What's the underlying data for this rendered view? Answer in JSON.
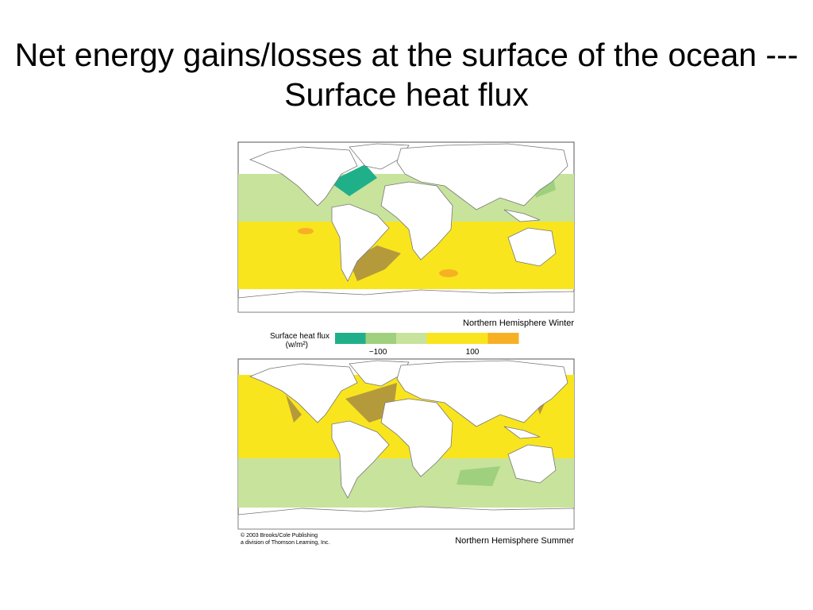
{
  "title": "Net energy gains/losses at the surface of the ocean --- Surface heat flux",
  "maps": [
    {
      "caption": "Northern Hemisphere Winter"
    },
    {
      "caption": "Northern Hemisphere Summer"
    }
  ],
  "legend": {
    "title": "Surface heat flux",
    "unit": "(w/m²)",
    "colors": [
      "#1fb08a",
      "#9fd07e",
      "#c8e39c",
      "#f9e51e",
      "#f7b024"
    ],
    "ticks": [
      "−100",
      "100"
    ]
  },
  "credit": [
    "© 2003 Brooks/Cole Publishing",
    "a division of Thomson Learning, Inc."
  ]
}
